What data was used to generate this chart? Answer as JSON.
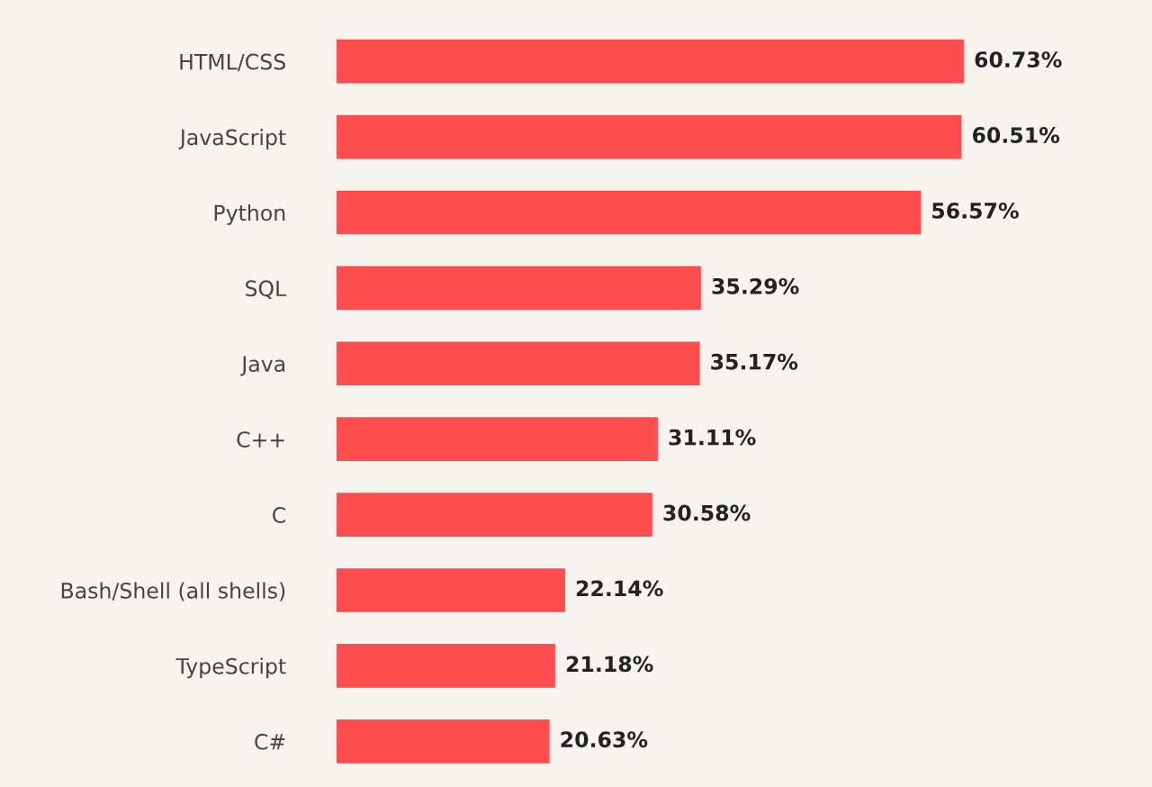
{
  "chart_data": {
    "type": "bar",
    "orientation": "horizontal",
    "categories": [
      "HTML/CSS",
      "JavaScript",
      "Python",
      "SQL",
      "Java",
      "C++",
      "C",
      "Bash/Shell (all shells)",
      "TypeScript",
      "C#"
    ],
    "values": [
      60.73,
      60.51,
      56.57,
      35.29,
      35.17,
      31.11,
      30.58,
      22.14,
      21.18,
      20.63
    ],
    "value_labels": [
      "60.73%",
      "60.51%",
      "56.57%",
      "35.29%",
      "35.17%",
      "31.11%",
      "30.58%",
      "22.14%",
      "21.18%",
      "20.63%"
    ],
    "color": "#fd4d4f",
    "grid": false,
    "legend": false
  }
}
